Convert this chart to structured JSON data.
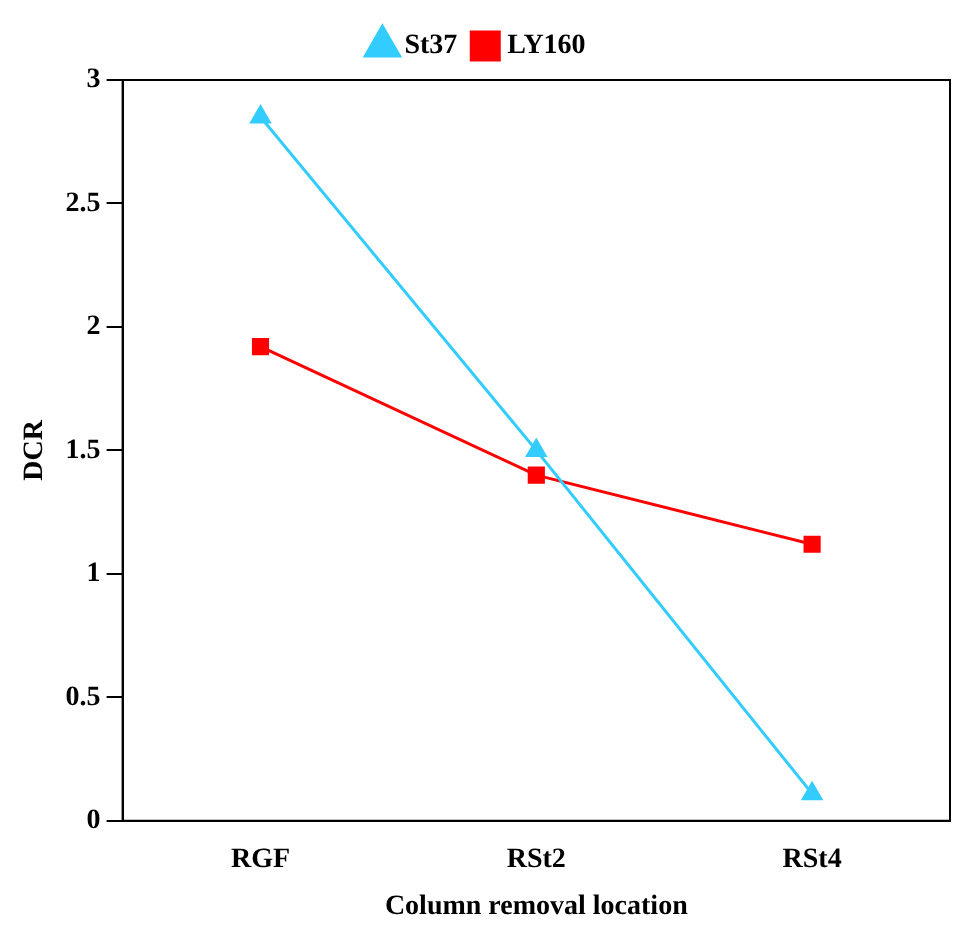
{
  "chart_data": {
    "type": "line",
    "xlabel": "Column removal location",
    "ylabel": "DCR",
    "categories": [
      "RGF",
      "RSt2",
      "RSt4"
    ],
    "series": [
      {
        "name": "St37",
        "color": "#33ccff",
        "marker": "triangle",
        "values": [
          2.85,
          1.5,
          0.11
        ]
      },
      {
        "name": "LY160",
        "color": "#ff0000",
        "marker": "square",
        "values": [
          1.92,
          1.4,
          1.12
        ]
      }
    ],
    "ylim": [
      0,
      3
    ],
    "yticks": [
      0,
      0.5,
      1,
      1.5,
      2,
      2.5,
      3
    ],
    "grid": false,
    "legend": "top"
  }
}
